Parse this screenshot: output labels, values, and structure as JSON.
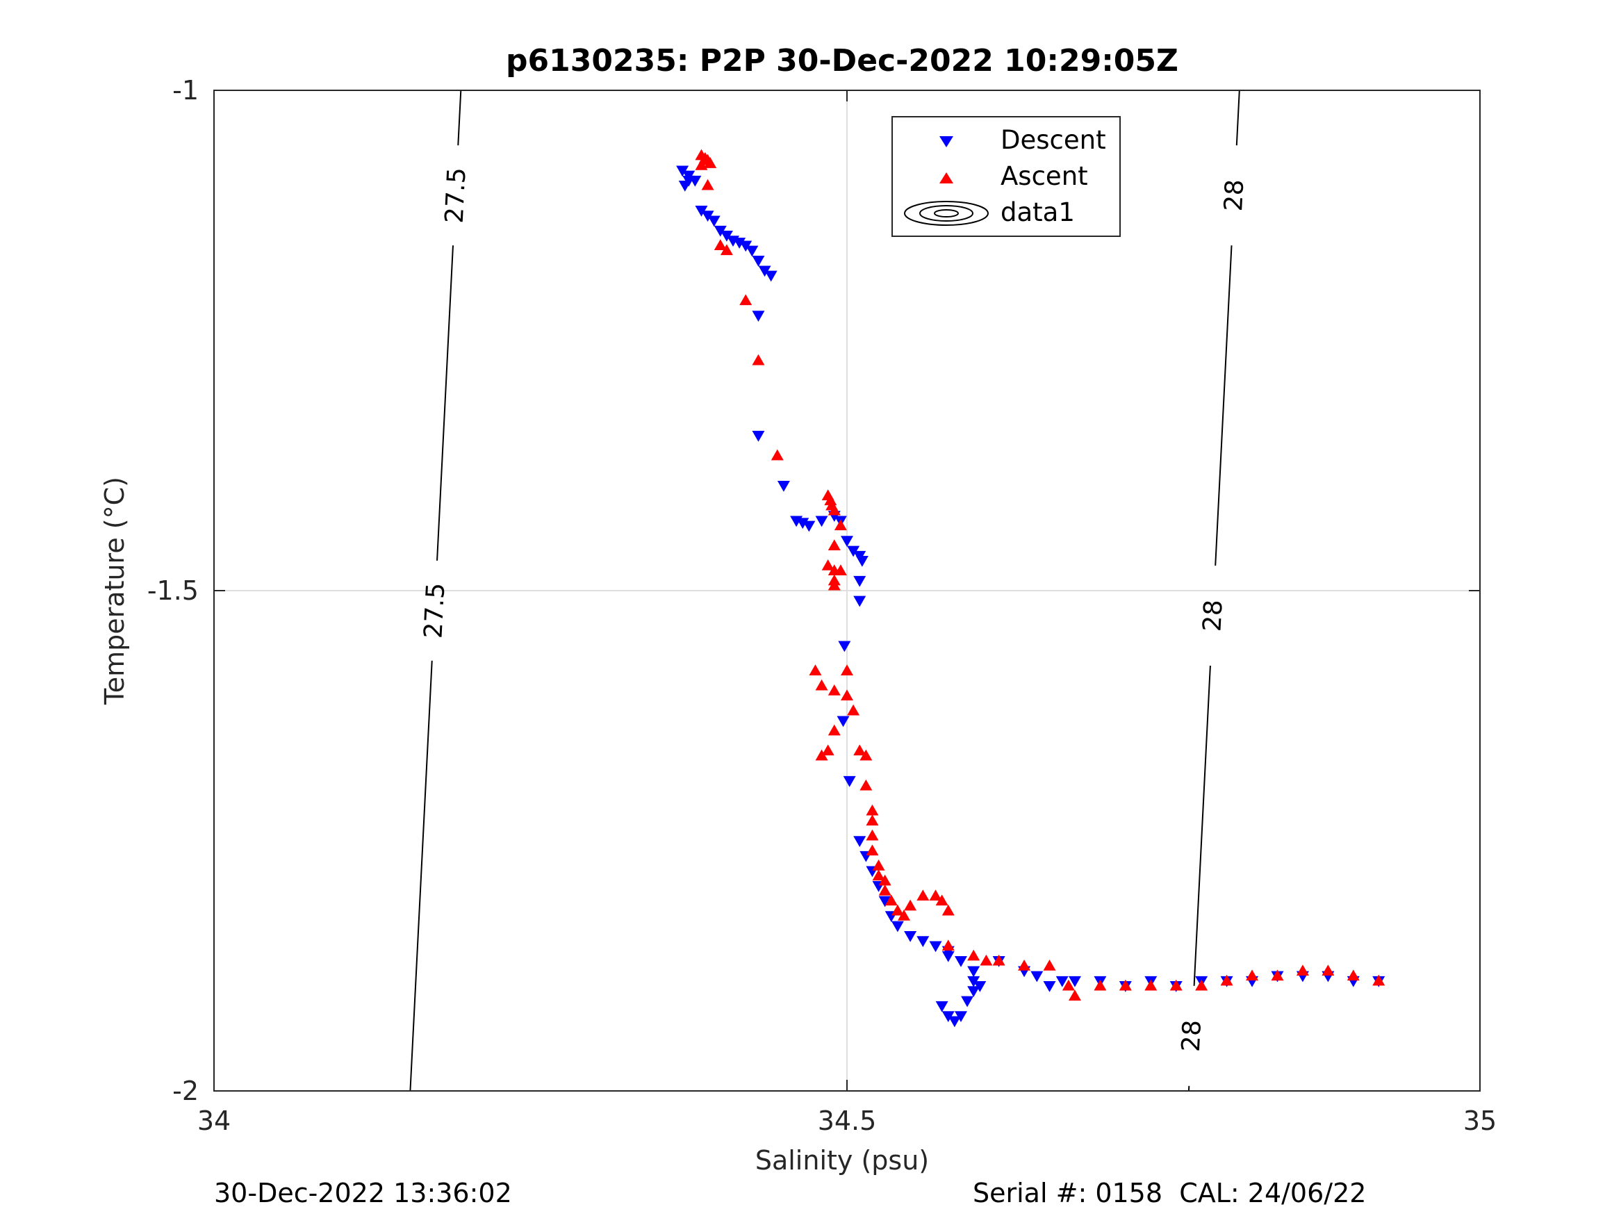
{
  "chart_data": {
    "type": "scatter",
    "title": "p6130235: P2P 30-Dec-2022 10:29:05Z",
    "xlabel": "Salinity (psu)",
    "ylabel": "Temperature (°C)",
    "xlim": [
      34,
      35
    ],
    "ylim": [
      -2,
      -1
    ],
    "x_ticks": [
      "34",
      "34.5",
      "35"
    ],
    "y_ticks": [
      "-1",
      "-1.5",
      "-2"
    ],
    "grid": true,
    "legend_position": "top-center",
    "legend": [
      "Descent",
      "Ascent",
      "data1"
    ],
    "colors": {
      "descent": "#0000ff",
      "ascent": "#ff0000",
      "contour": "#000000"
    },
    "series": [
      {
        "name": "Descent",
        "marker": "triangle-down",
        "points": [
          [
            34.37,
            -1.08
          ],
          [
            34.375,
            -1.085
          ],
          [
            34.38,
            -1.09
          ],
          [
            34.375,
            -1.09
          ],
          [
            34.372,
            -1.095
          ],
          [
            34.385,
            -1.12
          ],
          [
            34.39,
            -1.125
          ],
          [
            34.395,
            -1.13
          ],
          [
            34.4,
            -1.14
          ],
          [
            34.405,
            -1.145
          ],
          [
            34.41,
            -1.15
          ],
          [
            34.415,
            -1.152
          ],
          [
            34.42,
            -1.155
          ],
          [
            34.425,
            -1.16
          ],
          [
            34.43,
            -1.17
          ],
          [
            34.435,
            -1.18
          ],
          [
            34.44,
            -1.185
          ],
          [
            34.43,
            -1.225
          ],
          [
            34.43,
            -1.345
          ],
          [
            34.45,
            -1.395
          ],
          [
            34.46,
            -1.43
          ],
          [
            34.465,
            -1.432
          ],
          [
            34.47,
            -1.435
          ],
          [
            34.48,
            -1.43
          ],
          [
            34.49,
            -1.425
          ],
          [
            34.495,
            -1.43
          ],
          [
            34.5,
            -1.45
          ],
          [
            34.505,
            -1.46
          ],
          [
            34.51,
            -1.465
          ],
          [
            34.512,
            -1.47
          ],
          [
            34.51,
            -1.49
          ],
          [
            34.51,
            -1.51
          ],
          [
            34.498,
            -1.555
          ],
          [
            34.497,
            -1.63
          ],
          [
            34.502,
            -1.69
          ],
          [
            34.51,
            -1.75
          ],
          [
            34.515,
            -1.765
          ],
          [
            34.52,
            -1.78
          ],
          [
            34.525,
            -1.795
          ],
          [
            34.53,
            -1.81
          ],
          [
            34.535,
            -1.825
          ],
          [
            34.54,
            -1.835
          ],
          [
            34.55,
            -1.845
          ],
          [
            34.56,
            -1.85
          ],
          [
            34.57,
            -1.855
          ],
          [
            34.58,
            -1.86
          ],
          [
            34.59,
            -1.87
          ],
          [
            34.6,
            -1.88
          ],
          [
            34.605,
            -1.895
          ],
          [
            34.58,
            -1.865
          ],
          [
            34.6,
            -1.9
          ],
          [
            34.575,
            -1.915
          ],
          [
            34.58,
            -1.925
          ],
          [
            34.585,
            -1.93
          ],
          [
            34.59,
            -1.925
          ],
          [
            34.595,
            -1.91
          ],
          [
            34.6,
            -1.89
          ],
          [
            34.62,
            -1.87
          ],
          [
            34.64,
            -1.88
          ],
          [
            34.65,
            -1.885
          ],
          [
            34.66,
            -1.895
          ],
          [
            34.67,
            -1.89
          ],
          [
            34.68,
            -1.89
          ],
          [
            34.7,
            -1.89
          ],
          [
            34.72,
            -1.895
          ],
          [
            34.74,
            -1.89
          ],
          [
            34.76,
            -1.895
          ],
          [
            34.78,
            -1.89
          ],
          [
            34.8,
            -1.89
          ],
          [
            34.82,
            -1.89
          ],
          [
            34.84,
            -1.885
          ],
          [
            34.86,
            -1.885
          ],
          [
            34.88,
            -1.885
          ],
          [
            34.9,
            -1.89
          ],
          [
            34.92,
            -1.89
          ]
        ]
      },
      {
        "name": "Ascent",
        "marker": "triangle-up",
        "points": [
          [
            34.385,
            -1.065
          ],
          [
            34.388,
            -1.068
          ],
          [
            34.39,
            -1.07
          ],
          [
            34.392,
            -1.073
          ],
          [
            34.385,
            -1.075
          ],
          [
            34.39,
            -1.095
          ],
          [
            34.4,
            -1.155
          ],
          [
            34.405,
            -1.16
          ],
          [
            34.42,
            -1.21
          ],
          [
            34.43,
            -1.27
          ],
          [
            34.445,
            -1.365
          ],
          [
            34.485,
            -1.405
          ],
          [
            34.487,
            -1.41
          ],
          [
            34.488,
            -1.415
          ],
          [
            34.49,
            -1.42
          ],
          [
            34.495,
            -1.435
          ],
          [
            34.49,
            -1.455
          ],
          [
            34.485,
            -1.475
          ],
          [
            34.49,
            -1.48
          ],
          [
            34.495,
            -1.48
          ],
          [
            34.49,
            -1.49
          ],
          [
            34.49,
            -1.495
          ],
          [
            34.475,
            -1.58
          ],
          [
            34.48,
            -1.595
          ],
          [
            34.5,
            -1.58
          ],
          [
            34.49,
            -1.6
          ],
          [
            34.5,
            -1.605
          ],
          [
            34.505,
            -1.62
          ],
          [
            34.49,
            -1.64
          ],
          [
            34.485,
            -1.66
          ],
          [
            34.48,
            -1.665
          ],
          [
            34.51,
            -1.66
          ],
          [
            34.515,
            -1.665
          ],
          [
            34.515,
            -1.695
          ],
          [
            34.52,
            -1.72
          ],
          [
            34.52,
            -1.73
          ],
          [
            34.52,
            -1.745
          ],
          [
            34.52,
            -1.76
          ],
          [
            34.525,
            -1.775
          ],
          [
            34.525,
            -1.785
          ],
          [
            34.53,
            -1.79
          ],
          [
            34.53,
            -1.8
          ],
          [
            34.535,
            -1.81
          ],
          [
            34.54,
            -1.82
          ],
          [
            34.545,
            -1.825
          ],
          [
            34.55,
            -1.815
          ],
          [
            34.56,
            -1.805
          ],
          [
            34.57,
            -1.805
          ],
          [
            34.575,
            -1.81
          ],
          [
            34.58,
            -1.82
          ],
          [
            34.58,
            -1.855
          ],
          [
            34.6,
            -1.865
          ],
          [
            34.61,
            -1.87
          ],
          [
            34.62,
            -1.87
          ],
          [
            34.64,
            -1.875
          ],
          [
            34.66,
            -1.875
          ],
          [
            34.675,
            -1.895
          ],
          [
            34.68,
            -1.905
          ],
          [
            34.7,
            -1.895
          ],
          [
            34.72,
            -1.895
          ],
          [
            34.74,
            -1.895
          ],
          [
            34.76,
            -1.895
          ],
          [
            34.78,
            -1.895
          ],
          [
            34.8,
            -1.89
          ],
          [
            34.82,
            -1.885
          ],
          [
            34.84,
            -1.885
          ],
          [
            34.86,
            -1.88
          ],
          [
            34.88,
            -1.88
          ],
          [
            34.9,
            -1.885
          ],
          [
            34.92,
            -1.89
          ]
        ]
      }
    ],
    "contours": [
      {
        "label": "27.5",
        "points": [
          [
            34.195,
            -1.0
          ],
          [
            34.155,
            -2.0
          ]
        ],
        "label_positions": [
          -1.105,
          -1.52
        ]
      },
      {
        "label": "28",
        "points": [
          [
            34.81,
            -1.0
          ],
          [
            34.77,
            -2.0
          ]
        ],
        "label_positions": [
          -1.105,
          -1.525,
          -1.945
        ]
      }
    ]
  },
  "footer": {
    "timestamp": "30-Dec-2022 13:36:02",
    "serial": "Serial #: 0158  CAL: 24/06/22"
  }
}
